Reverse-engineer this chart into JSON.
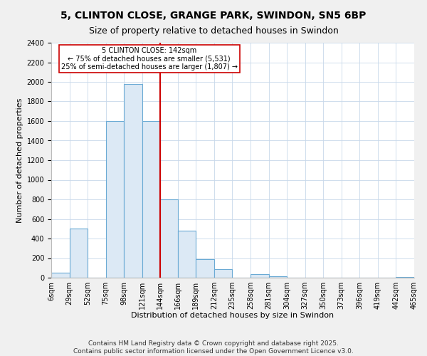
{
  "title": "5, CLINTON CLOSE, GRANGE PARK, SWINDON, SN5 6BP",
  "subtitle": "Size of property relative to detached houses in Swindon",
  "xlabel": "Distribution of detached houses by size in Swindon",
  "ylabel": "Number of detached properties",
  "bar_edges": [
    6,
    29,
    52,
    75,
    98,
    121,
    144,
    166,
    189,
    212,
    235,
    258,
    281,
    304,
    327,
    350,
    373,
    396,
    419,
    442,
    465
  ],
  "bar_heights": [
    50,
    500,
    0,
    1600,
    1975,
    1600,
    800,
    480,
    190,
    90,
    0,
    35,
    15,
    0,
    0,
    0,
    0,
    0,
    0,
    10
  ],
  "bar_color": "#dce9f5",
  "bar_edgecolor": "#6aaad4",
  "vline_x": 144,
  "vline_color": "#cc0000",
  "annotation_text": "5 CLINTON CLOSE: 142sqm\n← 75% of detached houses are smaller (5,531)\n25% of semi-detached houses are larger (1,807) →",
  "annotation_box_edgecolor": "#cc0000",
  "ylim": [
    0,
    2400
  ],
  "yticks": [
    0,
    200,
    400,
    600,
    800,
    1000,
    1200,
    1400,
    1600,
    1800,
    2000,
    2200,
    2400
  ],
  "tick_labels": [
    "6sqm",
    "29sqm",
    "52sqm",
    "75sqm",
    "98sqm",
    "121sqm",
    "144sqm",
    "166sqm",
    "189sqm",
    "212sqm",
    "235sqm",
    "258sqm",
    "281sqm",
    "304sqm",
    "327sqm",
    "350sqm",
    "373sqm",
    "396sqm",
    "419sqm",
    "442sqm",
    "465sqm"
  ],
  "footer_line1": "Contains HM Land Registry data © Crown copyright and database right 2025.",
  "footer_line2": "Contains public sector information licensed under the Open Government Licence v3.0.",
  "background_color": "#f0f0f0",
  "plot_bg_color": "#ffffff",
  "grid_color": "#c8d8ea",
  "title_fontsize": 10,
  "subtitle_fontsize": 9,
  "axis_label_fontsize": 8,
  "tick_fontsize": 7,
  "footer_fontsize": 6.5
}
